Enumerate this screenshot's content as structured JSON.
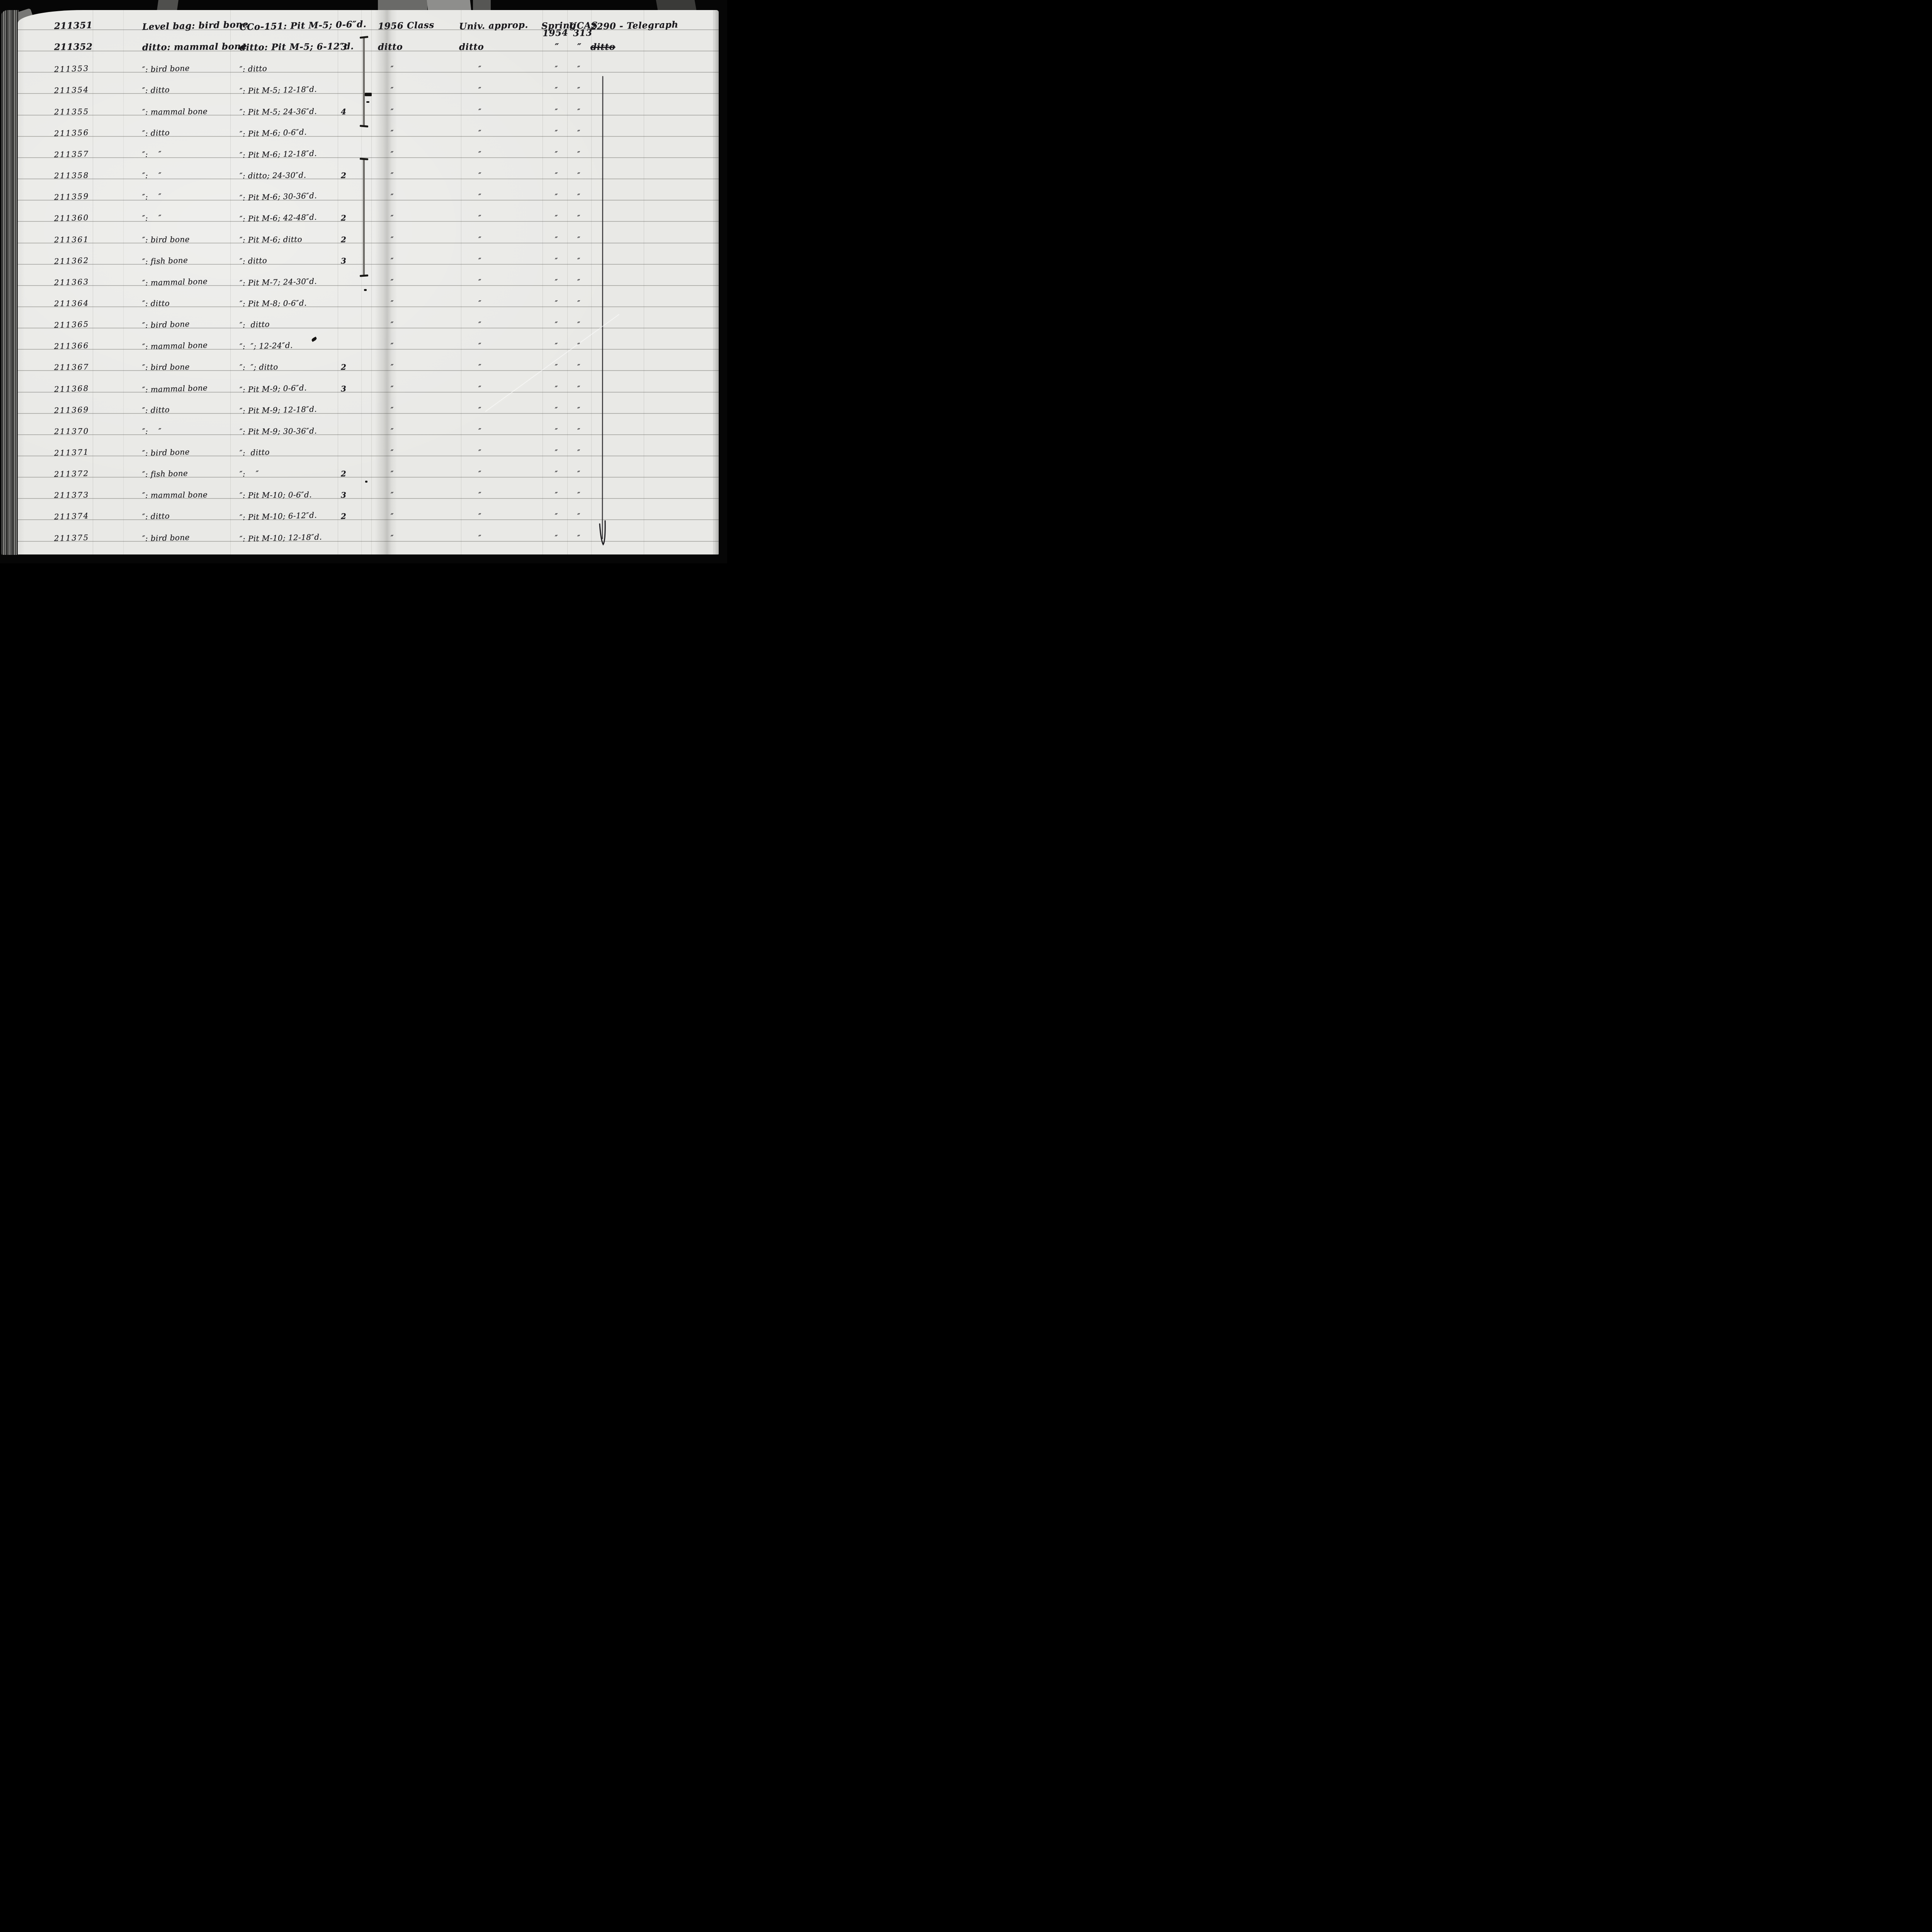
{
  "document": {
    "kind": "handwritten accession ledger page, scanned photograph",
    "colors": {
      "paper": "#e9e9e6",
      "ink": "#1a191d",
      "ruling": "#6f6f6c",
      "frame": "#060606"
    }
  },
  "rows": [
    {
      "no": "211351",
      "desc": "Level bag: bird bone",
      "prov": "CCo-151: Pit M-5; 0-6″d.",
      "count": "",
      "cls": "1956 Class",
      "fund": "Univ. approp.",
      "season": "Spring",
      "season2": "1954",
      "acc": "UCAS",
      "acc2": "313",
      "loc": "2290 - Telegraph",
      "loc_struck": false
    },
    {
      "no": "211352",
      "desc": "ditto: mammal bone",
      "prov": "ditto: Pit M-5; 6-12″d.",
      "count": "3",
      "cls": "ditto",
      "fund": "ditto",
      "season": "″",
      "acc": "″",
      "loc": "ditto",
      "loc_struck": true
    },
    {
      "no": "211353",
      "desc": "″: bird bone",
      "prov": "″: ditto",
      "count": "",
      "cls": "″",
      "fund": "″",
      "season": "″",
      "acc": "″",
      "loc": ""
    },
    {
      "no": "211354",
      "desc": "″: ditto",
      "prov": "″: Pit M-5; 12-18″d.",
      "count": "",
      "cls": "″",
      "fund": "″",
      "season": "″",
      "acc": "″",
      "loc": ""
    },
    {
      "no": "211355",
      "desc": "″: mammal bone",
      "prov": "″: Pit M-5; 24-36″d.",
      "count": "4",
      "cls": "″",
      "fund": "″",
      "season": "″",
      "acc": "″",
      "loc": ""
    },
    {
      "no": "211356",
      "desc": "″: ditto",
      "prov": "″: Pit M-6; 0-6″d.",
      "count": "",
      "cls": "″",
      "fund": "″",
      "season": "″",
      "acc": "″",
      "loc": ""
    },
    {
      "no": "211357",
      "desc": "″:    ″",
      "prov": "″: Pit M-6; 12-18″d.",
      "count": "",
      "cls": "″",
      "fund": "″",
      "season": "″",
      "acc": "″",
      "loc": ""
    },
    {
      "no": "211358",
      "desc": "″:    ″",
      "prov": "″: ditto; 24-30″d.",
      "count": "2",
      "cls": "″",
      "fund": "″",
      "season": "″",
      "acc": "″",
      "loc": ""
    },
    {
      "no": "211359",
      "desc": "″:    ″",
      "prov": "″: Pit M-6; 30-36″d.",
      "count": "",
      "cls": "″",
      "fund": "″",
      "season": "″",
      "acc": "″",
      "loc": ""
    },
    {
      "no": "211360",
      "desc": "″:    ″",
      "prov": "″: Pit M-6; 42-48″d.",
      "count": "2",
      "cls": "″",
      "fund": "″",
      "season": "″",
      "acc": "″",
      "loc": ""
    },
    {
      "no": "211361",
      "desc": "″: bird bone",
      "prov": "″: Pit M-6; ditto",
      "count": "2",
      "cls": "″",
      "fund": "″",
      "season": "″",
      "acc": "″",
      "loc": ""
    },
    {
      "no": "211362",
      "desc": "″: fish bone",
      "prov": "″: ditto",
      "count": "3",
      "cls": "″",
      "fund": "″",
      "season": "″",
      "acc": "″",
      "loc": ""
    },
    {
      "no": "211363",
      "desc": "″: mammal bone",
      "prov": "″: Pit M-7; 24-30″d.",
      "count": "",
      "cls": "″",
      "fund": "″",
      "season": "″",
      "acc": "″",
      "loc": ""
    },
    {
      "no": "211364",
      "desc": "″: ditto",
      "prov": "″: Pit M-8; 0-6″d.",
      "count": "",
      "cls": "″",
      "fund": "″",
      "season": "″",
      "acc": "″",
      "loc": ""
    },
    {
      "no": "211365",
      "desc": "″: bird bone",
      "prov": "″:  ditto",
      "count": "",
      "cls": "″",
      "fund": "″",
      "season": "″",
      "acc": "″",
      "loc": ""
    },
    {
      "no": "211366",
      "desc": "″: mammal bone",
      "prov": "″:  ″; 12-24″d.",
      "count": "",
      "cls": "″",
      "fund": "″",
      "season": "″",
      "acc": "″",
      "loc": ""
    },
    {
      "no": "211367",
      "desc": "″: bird bone",
      "prov": "″:  ″; ditto",
      "count": "2",
      "cls": "″",
      "fund": "″",
      "season": "″",
      "acc": "″",
      "loc": ""
    },
    {
      "no": "211368",
      "desc": "″: mammal bone",
      "prov": "″: Pit M-9; 0-6″d.",
      "count": "3",
      "cls": "″",
      "fund": "″",
      "season": "″",
      "acc": "″",
      "loc": ""
    },
    {
      "no": "211369",
      "desc": "″: ditto",
      "prov": "″: Pit M-9; 12-18″d.",
      "count": "",
      "cls": "″",
      "fund": "″",
      "season": "″",
      "acc": "″",
      "loc": ""
    },
    {
      "no": "211370",
      "desc": "″:    ″",
      "prov": "″: Pit M-9; 30-36″d.",
      "count": "",
      "cls": "″",
      "fund": "″",
      "season": "″",
      "acc": "″",
      "loc": ""
    },
    {
      "no": "211371",
      "desc": "″: bird bone",
      "prov": "″:  ditto",
      "count": "",
      "cls": "″",
      "fund": "″",
      "season": "″",
      "acc": "″",
      "loc": ""
    },
    {
      "no": "211372",
      "desc": "″: fish bone",
      "prov": "″:    ″",
      "count": "2",
      "cls": "″",
      "fund": "″",
      "season": "″",
      "acc": "″",
      "loc": ""
    },
    {
      "no": "211373",
      "desc": "″: mammal bone",
      "prov": "″: Pit M-10; 0-6″d.",
      "count": "3",
      "cls": "″",
      "fund": "″",
      "season": "″",
      "acc": "″",
      "loc": ""
    },
    {
      "no": "211374",
      "desc": "″: ditto",
      "prov": "″: Pit M-10; 6-12″d.",
      "count": "2",
      "cls": "″",
      "fund": "″",
      "season": "″",
      "acc": "″",
      "loc": ""
    },
    {
      "no": "211375",
      "desc": "″: bird bone",
      "prov": "″: Pit M-10; 12-18″d.",
      "count": "",
      "cls": "″",
      "fund": "″",
      "season": "″",
      "acc": "″",
      "loc": ""
    }
  ]
}
